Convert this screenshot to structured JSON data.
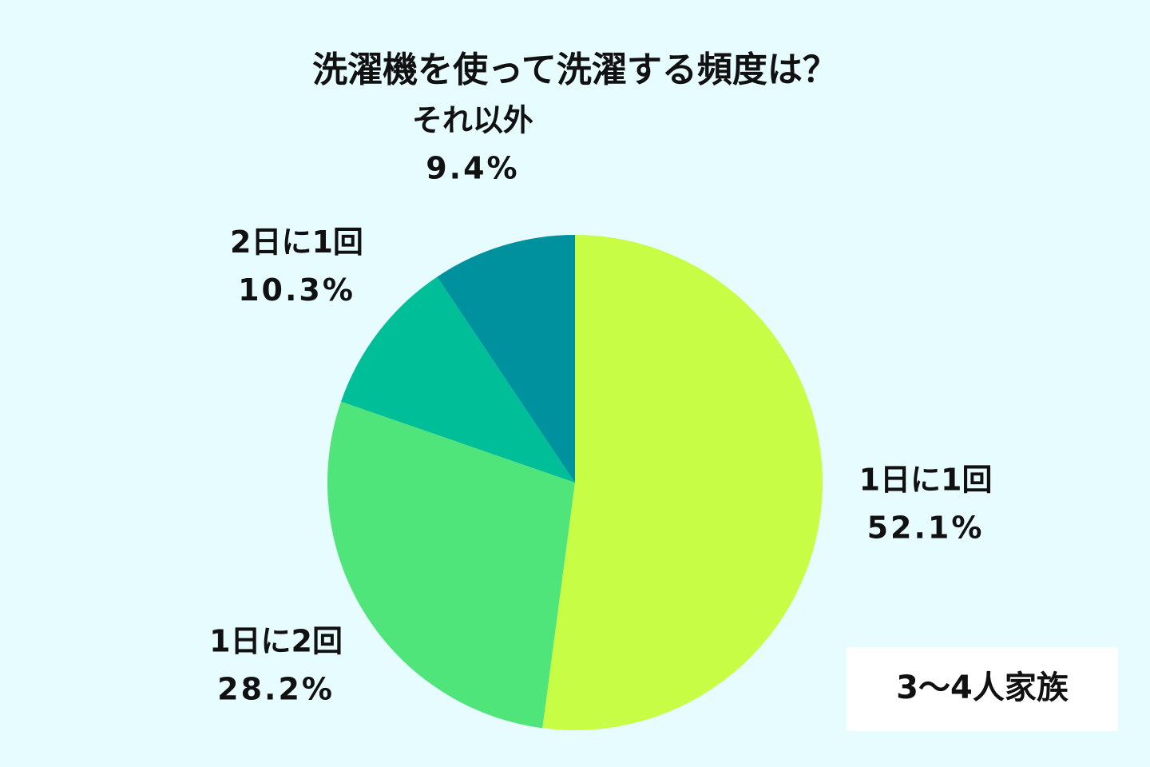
{
  "chart_data": {
    "type": "pie",
    "title": "洗濯機を使って洗濯する頻度は？",
    "categories": [
      "1日に1回",
      "1日に2回",
      "2日に1回",
      "それ以外"
    ],
    "values": [
      52.1,
      28.2,
      10.3,
      9.4
    ],
    "value_labels": [
      "52.1%",
      "28.2%",
      "10.3%",
      "9.4%"
    ],
    "colors": [
      "#c8fd45",
      "#4fe57a",
      "#00be97",
      "#00919e"
    ],
    "annotation": "3〜4人家族"
  }
}
